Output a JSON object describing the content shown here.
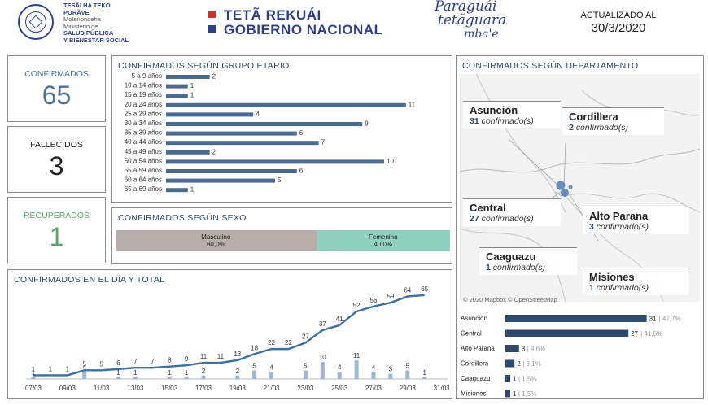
{
  "header": {
    "ministry_line1": "TESÃI HA TEKO",
    "ministry_line2": "PORÃVE",
    "ministry_line3": "Motenondeha",
    "ministry_line4": "Ministerio de",
    "ministry_line5": "SALUD PÚBLICA",
    "ministry_line6": "Y BIENESTAR SOCIAL",
    "gov_line1": "TETÃ REKUÁI",
    "gov_line2": "GOBIERNO NACIONAL",
    "brand_line1": "Paraguái",
    "brand_line2": "tetãguara",
    "brand_line3": "mba'e",
    "updated_label": "ACTUALIZADO AL",
    "updated_date": "30/3/2020",
    "colors": {
      "red": "#d32f2f",
      "blue": "#2e3f8f"
    }
  },
  "kpis": {
    "confirmed": {
      "label": "CONFIRMADOS",
      "value": "65",
      "color": "#4a6f99"
    },
    "deaths": {
      "label": "FALLECIDOS",
      "value": "3",
      "color": "#222222"
    },
    "recovered": {
      "label": "RECUPERADOS",
      "value": "1",
      "color": "#5aa469"
    }
  },
  "age_chart": {
    "title": "CONFIRMADOS SEGÚN GRUPO ETARIO",
    "color": "#4a6a8f",
    "chart_data": {
      "type": "bar",
      "categories": [
        "5 a 9 años",
        "10 a 14 años",
        "15 a 19 años",
        "20 a 24 años",
        "25 a 29 años",
        "30 a 34 años",
        "35 a 39 años",
        "40 a 44 años",
        "45 a 49 años",
        "50 a 54 años",
        "55 a 59 años",
        "60 a 64 años",
        "65 a 69 años"
      ],
      "values": [
        2,
        1,
        1,
        11,
        4,
        9,
        6,
        7,
        2,
        10,
        6,
        5,
        1
      ],
      "title": "CONFIRMADOS SEGÚN GRUPO ETARIO"
    }
  },
  "sex_chart": {
    "title": "CONFIRMADOS SEGÚN SEXO",
    "male": {
      "label": "Masculino",
      "pct": "60,0%",
      "value": 60,
      "color": "#b7aea9"
    },
    "female": {
      "label": "Femenino",
      "pct": "40,0%",
      "value": 40,
      "color": "#8fd0bf"
    }
  },
  "daily_chart": {
    "title": "CONFIRMADOS EN EL DÍA Y TOTAL",
    "line_color": "#3d6e9e",
    "bar_color": "#9eb6d1",
    "chart_data": {
      "type": "line",
      "x": [
        "07/03",
        "08/03",
        "09/03",
        "10/03",
        "11/03",
        "12/03",
        "13/03",
        "14/03",
        "15/03",
        "16/03",
        "17/03",
        "18/03",
        "19/03",
        "20/03",
        "21/03",
        "22/03",
        "23/03",
        "24/03",
        "25/03",
        "26/03",
        "27/03",
        "28/03",
        "29/03",
        "30/03"
      ],
      "x_tick_labels": [
        "07/03",
        "09/03",
        "11/03",
        "13/03",
        "15/03",
        "17/03",
        "19/03",
        "21/03",
        "23/03",
        "25/03",
        "27/03",
        "29/03",
        "31/03"
      ],
      "series": [
        {
          "type": "line",
          "values": [
            1,
            1,
            1,
            5,
            5,
            6,
            7,
            7,
            8,
            9,
            11,
            11,
            13,
            18,
            22,
            22,
            27,
            37,
            41,
            52,
            56,
            59,
            64,
            65
          ]
        },
        {
          "type": "bar",
          "values": [
            1,
            0,
            0,
            4,
            0,
            1,
            1,
            0,
            1,
            1,
            2,
            0,
            2,
            5,
            4,
            0,
            5,
            10,
            4,
            11,
            4,
            3,
            5,
            1
          ]
        }
      ],
      "daily_labels": [
        "1",
        "",
        "",
        "4",
        "",
        "1",
        "1",
        "",
        "1",
        "1",
        "2",
        "",
        "2",
        "5",
        "4",
        "",
        "5",
        "10",
        "4",
        "11",
        "4",
        "3",
        "5",
        "1"
      ],
      "ylim": [
        0,
        70
      ]
    }
  },
  "dept_map": {
    "title": "CONFIRMADOS SEGÚN DEPARTAMENTO",
    "attribution": "© 2020 Mapbox © OpenStreetMap",
    "suffix": "confirmado(s)",
    "cities": [
      {
        "name": "Asunción",
        "count": "31"
      },
      {
        "name": "Cordillera",
        "count": "2"
      },
      {
        "name": "Central",
        "count": "27"
      },
      {
        "name": "Alto Parana",
        "count": "3"
      },
      {
        "name": "Caaguazu",
        "count": "1"
      },
      {
        "name": "Misiones",
        "count": "1"
      }
    ]
  },
  "dept_bars": {
    "color": "#2e4a6b",
    "chart_data": {
      "type": "bar",
      "categories": [
        "Asunción",
        "Central",
        "Alto Parana",
        "Cordillera",
        "Caaguazu",
        "Misiones"
      ],
      "values": [
        31,
        27,
        3,
        2,
        1,
        1
      ],
      "labels": [
        "31",
        "27",
        "3",
        "2",
        "1",
        "1"
      ],
      "pct_labels": [
        "| 47,7%",
        "| 41,5%",
        "| 4,6%",
        "| 3,1%",
        "| 1,5%",
        "| 1,5%"
      ]
    }
  }
}
